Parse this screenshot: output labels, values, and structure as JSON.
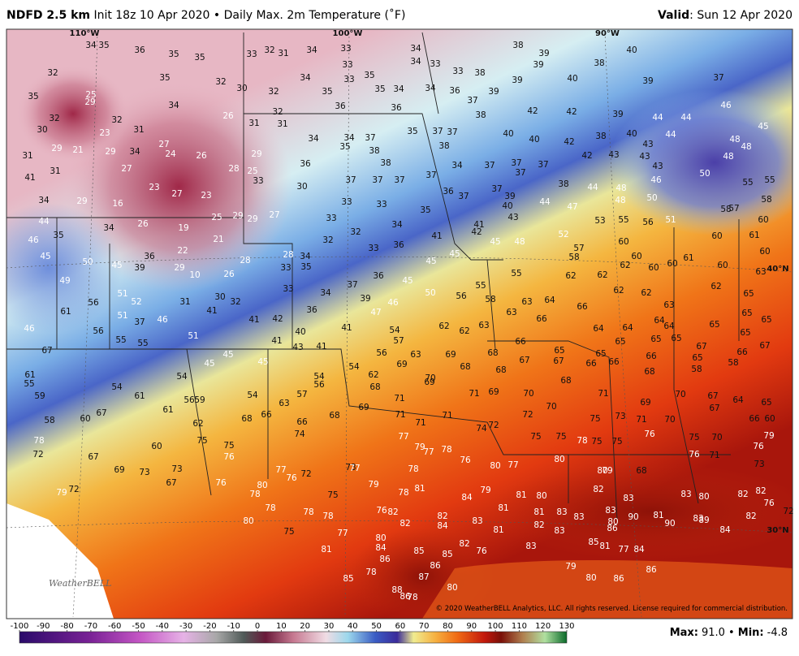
{
  "header": {
    "title": "NDFD 2.5 km",
    "subtitle": "Init 18z 10 Apr 2020 • Daily Max. 2m Temperature (˚F)",
    "valid_label": "Valid",
    "valid_date": ": Sun 12 Apr 2020"
  },
  "map": {
    "grid_labels": [
      "110°W",
      "100°W",
      "90°W",
      "40°N",
      "30°N"
    ],
    "temperatures": [
      34,
      35,
      36,
      35,
      35,
      32,
      35,
      32,
      35,
      25,
      29,
      32,
      32,
      34,
      26,
      33,
      32,
      31,
      34,
      33,
      33,
      34,
      33,
      35,
      34,
      35,
      35,
      30,
      32,
      36,
      36,
      34,
      34,
      33,
      33,
      38,
      38,
      39,
      39,
      39,
      40,
      38,
      40,
      39,
      37,
      39,
      37,
      36,
      34,
      46,
      30,
      23,
      31,
      27,
      21,
      29,
      34,
      24,
      26,
      31,
      29,
      32,
      31,
      31,
      34,
      34,
      35,
      37,
      38,
      35,
      37,
      37,
      38,
      38,
      42,
      42,
      39,
      44,
      44,
      40,
      40,
      42,
      38,
      40,
      43,
      44,
      45,
      48,
      48,
      48,
      31,
      41,
      27,
      23,
      27,
      23,
      28,
      29,
      25,
      33,
      36,
      38,
      37,
      37,
      37,
      37,
      34,
      37,
      37,
      37,
      37,
      38,
      42,
      43,
      43,
      43,
      46,
      50,
      55,
      55,
      44,
      48,
      36,
      37,
      37,
      39,
      40,
      44,
      43,
      47,
      48,
      50,
      58,
      34,
      29,
      16,
      30,
      33,
      33,
      35,
      44,
      35,
      46,
      34,
      26,
      19,
      25,
      29,
      29,
      27,
      33,
      34,
      41,
      42,
      53,
      55,
      56,
      51,
      58,
      57,
      60,
      21,
      22,
      32,
      32,
      41,
      45,
      48,
      52,
      61,
      60,
      50,
      45,
      39,
      36,
      29,
      10,
      28,
      28,
      34,
      33,
      35,
      33,
      36,
      45,
      45,
      57,
      58,
      60,
      60,
      62,
      60,
      60,
      61,
      60,
      60,
      63,
      55,
      62,
      62,
      45,
      49,
      26,
      33,
      34,
      37,
      36,
      45,
      50,
      56,
      55,
      62,
      62,
      62,
      65,
      56,
      51,
      52,
      61,
      51,
      31,
      30,
      32,
      41,
      36,
      39,
      47,
      46,
      58,
      63,
      63,
      64,
      66,
      63,
      65,
      65,
      46,
      56,
      37,
      46,
      55,
      55,
      51,
      41,
      42,
      40,
      41,
      54,
      57,
      62,
      62,
      63,
      66,
      64,
      64,
      64,
      64,
      65,
      65,
      65,
      65,
      65,
      41,
      43,
      41,
      67,
      45,
      45,
      45,
      56,
      63,
      69,
      68,
      66,
      65,
      65,
      66,
      67,
      67,
      66,
      67,
      67,
      66,
      66,
      65,
      58,
      61,
      55,
      54,
      54,
      56,
      54,
      62,
      69,
      70,
      69,
      68,
      68,
      68,
      68,
      58,
      54,
      59,
      61,
      56,
      59,
      54,
      57,
      63,
      68,
      71,
      71,
      69,
      70,
      71,
      69,
      70,
      67,
      64,
      65,
      67,
      61,
      66,
      68,
      68,
      69,
      71,
      71,
      71,
      70,
      72,
      73,
      71,
      70,
      67,
      66,
      60,
      58,
      60,
      62,
      66,
      74,
      74,
      72,
      75,
      75,
      75,
      76,
      75,
      70,
      79,
      78,
      72,
      60,
      75,
      75,
      76,
      77,
      79,
      77,
      78,
      76,
      75,
      75,
      78,
      76,
      71,
      76,
      73,
      67,
      69,
      73,
      73,
      67,
      76,
      77,
      76,
      72,
      73,
      77,
      78,
      80,
      77,
      80,
      80,
      79,
      68,
      72,
      79,
      80,
      78,
      75,
      79,
      78,
      81,
      84,
      79,
      81,
      80,
      82,
      83,
      83,
      80,
      82,
      82,
      76,
      78,
      78,
      78,
      76,
      82,
      82,
      81,
      81,
      83,
      83,
      83,
      80,
      81,
      90,
      89,
      83,
      82,
      72,
      80,
      82,
      84,
      83,
      81,
      82,
      83,
      86,
      90,
      84,
      75,
      77,
      80,
      84,
      82,
      76,
      83,
      85,
      81,
      77,
      84,
      81,
      86,
      85,
      86,
      85,
      78,
      79,
      86,
      85,
      87,
      88,
      86,
      78,
      80,
      80,
      86
    ]
  },
  "logo": "WeatherBELL",
  "copyright": "© 2020 WeatherBELL Analytics, LLC. All rights reserved. License required for commercial distribution.",
  "colorbar": {
    "ticks": [
      -100,
      -90,
      -80,
      -70,
      -60,
      -50,
      -40,
      -30,
      -20,
      -10,
      0,
      10,
      20,
      30,
      40,
      50,
      60,
      70,
      80,
      90,
      100,
      110,
      120,
      130
    ]
  },
  "footer": {
    "max_label": "Max:",
    "max": "91.0",
    "separator": "•",
    "min_label": "Min:",
    "min": "-4.8"
  }
}
